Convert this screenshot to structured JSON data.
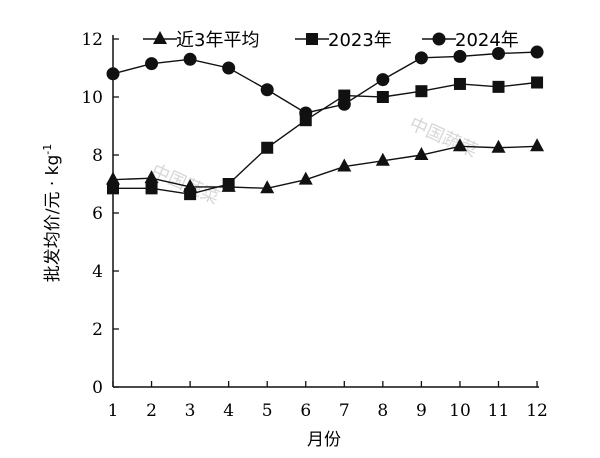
{
  "chart_data": {
    "type": "line",
    "x": [
      1,
      2,
      3,
      4,
      5,
      6,
      7,
      8,
      9,
      10,
      11,
      12
    ],
    "xlabel": "月份",
    "ylabel": "批发均价/元 · kg",
    "ylabel_superscript": "-1",
    "ylim": [
      0,
      12
    ],
    "yticks": [
      0,
      2,
      4,
      6,
      8,
      10,
      12
    ],
    "xlim": [
      1,
      12
    ],
    "grid": false,
    "legend_position": "top",
    "series": [
      {
        "name": "近3年平均",
        "marker": "triangle",
        "values": [
          7.15,
          7.2,
          6.9,
          6.9,
          6.85,
          7.15,
          7.6,
          7.8,
          8.0,
          8.3,
          8.25,
          8.3
        ]
      },
      {
        "name": "2023年",
        "marker": "square",
        "values": [
          6.85,
          6.85,
          6.65,
          7.0,
          8.25,
          9.2,
          10.05,
          10.0,
          10.2,
          10.45,
          10.35,
          10.5
        ]
      },
      {
        "name": "2024年",
        "marker": "circle",
        "values": [
          10.8,
          11.15,
          11.3,
          11.0,
          10.25,
          9.45,
          9.75,
          10.6,
          11.35,
          11.4,
          11.5,
          11.55
        ]
      }
    ]
  },
  "watermarks": [
    "中国蔬菜",
    "中国蔬菜"
  ],
  "colors": {
    "line": "#111111",
    "marker": "#111111"
  }
}
